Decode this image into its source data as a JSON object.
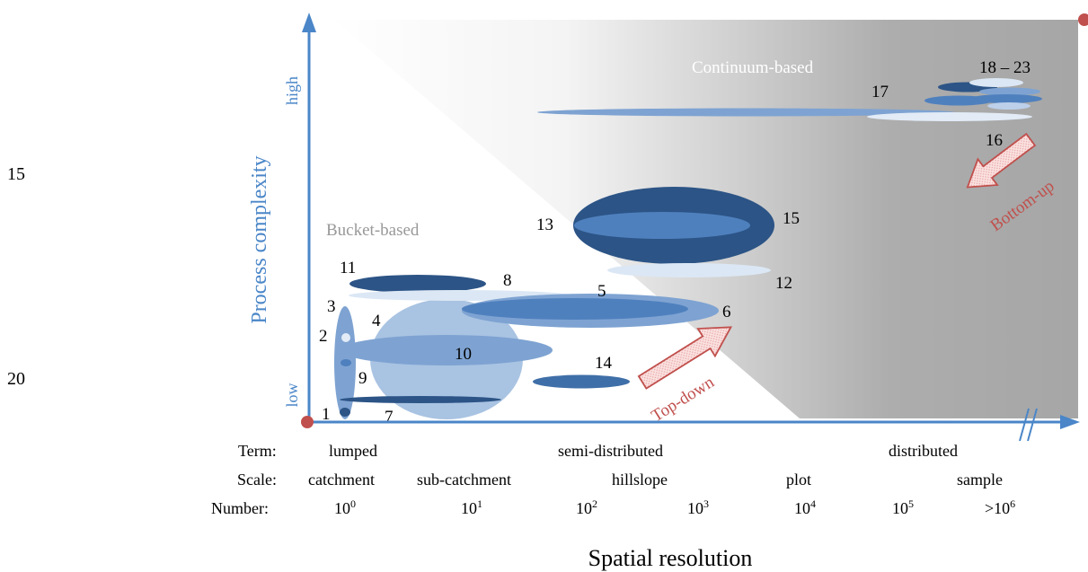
{
  "line_numbers": {
    "a": "15",
    "b": "20"
  },
  "axes": {
    "y_title": "Process complexity",
    "y_high": "high",
    "y_low": "low",
    "x_title": "Spatial resolution"
  },
  "regions": {
    "continuum": "Continuum-based",
    "bucket": "Bucket-based"
  },
  "arrows": {
    "top_down": "Top-down",
    "bottom_up": "Bottom-up"
  },
  "model_labels": {
    "m1": "1",
    "m2": "2",
    "m3": "3",
    "m4": "4",
    "m5": "5",
    "m6": "6",
    "m7": "7",
    "m8": "8",
    "m9": "9",
    "m10": "10",
    "m11": "11",
    "m12": "12",
    "m13": "13",
    "m14": "14",
    "m15": "15",
    "m16": "16",
    "m17": "17",
    "m18_23": "18 – 23"
  },
  "rows": {
    "term": {
      "label": "Term:",
      "values": {
        "lumped": "lumped",
        "semi": "semi-distributed",
        "distributed": "distributed"
      }
    },
    "scale": {
      "label": "Scale:",
      "values": {
        "catchment": "catchment",
        "sub": "sub-catchment",
        "hillslope": "hillslope",
        "plot": "plot",
        "sample": "sample"
      }
    },
    "number": {
      "label": "Number:",
      "values": [
        {
          "base": "10",
          "exp": "0"
        },
        {
          "base": "10",
          "exp": "1"
        },
        {
          "base": "10",
          "exp": "2"
        },
        {
          "base": "10",
          "exp": "3"
        },
        {
          "base": "10",
          "exp": "4"
        },
        {
          "base": "10",
          "exp": "5"
        },
        {
          "base": ">10",
          "exp": "6"
        }
      ]
    }
  },
  "colors": {
    "axis_blue": "#4a86c8",
    "dark_navy": "#2c5486",
    "mid_blue": "#4f80be",
    "light_blue": "#a9c3e2",
    "pale_blue": "#dbe7f4",
    "arrow_red": "#c0504d",
    "origin_dot": "#c0504d",
    "gray_region": "#a9a9a9"
  }
}
